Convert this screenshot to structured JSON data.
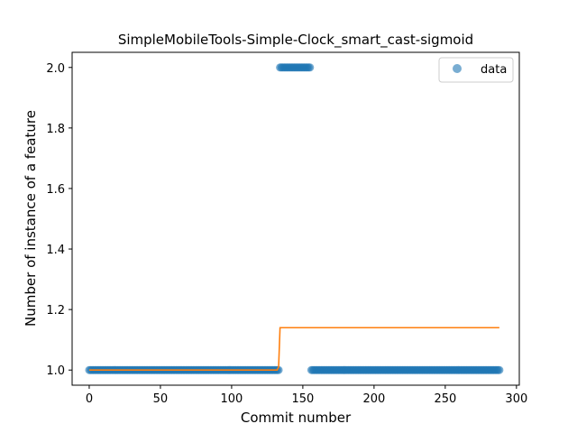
{
  "chart_data": {
    "type": "scatter",
    "title": "SimpleMobileTools-Simple-Clock_smart_cast-sigmoid",
    "xlabel": "Commit number",
    "ylabel": "Number of instance of a feature",
    "xlim": [
      -12,
      302
    ],
    "ylim": [
      0.95,
      2.05
    ],
    "xticks": [
      0,
      50,
      100,
      150,
      200,
      250,
      300
    ],
    "yticks": [
      1.0,
      1.2,
      1.4,
      1.6,
      1.8,
      2.0
    ],
    "legend": {
      "placement": "top-right",
      "entries": [
        "data"
      ]
    },
    "colors": {
      "data": "#1f77b4",
      "fit": "#ff7f0e"
    },
    "data_segments": [
      {
        "x_start": 0,
        "x_end": 133,
        "y": 1.0
      },
      {
        "x_start": 134,
        "x_end": 155,
        "y": 2.0
      },
      {
        "x_start": 156,
        "x_end": 288,
        "y": 1.0
      }
    ],
    "fit_line": {
      "x": [
        0,
        132,
        133,
        134,
        288
      ],
      "y": [
        1.0,
        1.0,
        1.01,
        1.14,
        1.14
      ]
    }
  }
}
